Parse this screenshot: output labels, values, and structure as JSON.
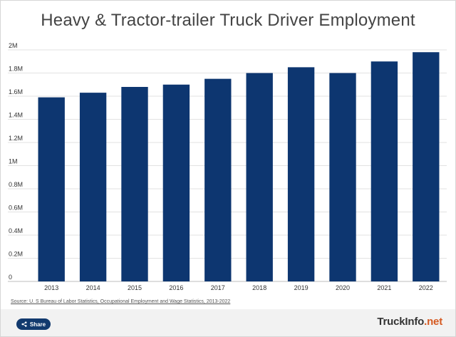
{
  "chart_data": {
    "type": "bar",
    "title": "Heavy & Tractor-trailer Truck Driver Employment",
    "categories": [
      "2013",
      "2014",
      "2015",
      "2016",
      "2017",
      "2018",
      "2019",
      "2020",
      "2021",
      "2022"
    ],
    "values": [
      1590000,
      1630000,
      1680000,
      1700000,
      1750000,
      1800000,
      1850000,
      1800000,
      1900000,
      1980000
    ],
    "ylim": [
      0,
      2000000
    ],
    "yticks": [
      0,
      200000,
      400000,
      600000,
      800000,
      1000000,
      1200000,
      1400000,
      1600000,
      1800000,
      2000000
    ],
    "ytick_labels": [
      "0",
      "0.2M",
      "0.4M",
      "0.6M",
      "0.8M",
      "1M",
      "1.2M",
      "1.4M",
      "1.6M",
      "1.8M",
      "2M"
    ],
    "xlabel": "",
    "ylabel": "",
    "grid": true,
    "bar_color": "#0d3670"
  },
  "source": "Source: U. S Bureau of Labor Statistics, Occupational Employment and Wage Statistics, 2013-2022",
  "share_label": "Share",
  "share_icon": "share-icon",
  "brand": {
    "part1": "TruckInfo",
    "part2": ".net"
  }
}
